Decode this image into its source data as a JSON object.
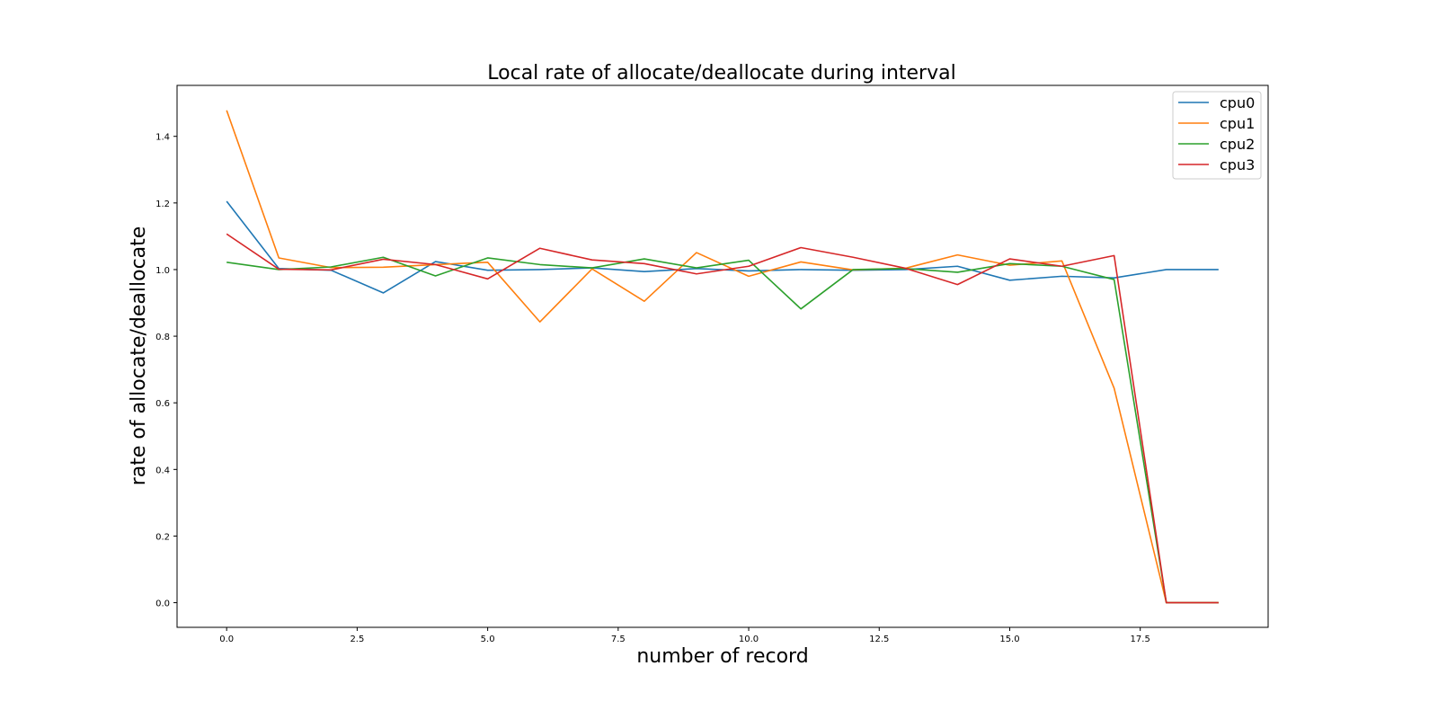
{
  "chart_data": {
    "type": "line",
    "title": "Local rate of allocate/deallocate during interval",
    "xlabel": "number of record",
    "ylabel": "rate of allocate/deallocate",
    "xlim": [
      -0.95,
      19.95
    ],
    "ylim": [
      -0.074,
      1.553
    ],
    "xticks": [
      0.0,
      2.5,
      5.0,
      7.5,
      10.0,
      12.5,
      15.0,
      17.5
    ],
    "yticks": [
      0.0,
      0.2,
      0.4,
      0.6,
      0.8,
      1.0,
      1.2,
      1.4
    ],
    "grid": false,
    "legend_position": "upper right",
    "x": [
      0,
      1,
      2,
      3,
      4,
      5,
      6,
      7,
      8,
      9,
      10,
      11,
      12,
      13,
      14,
      15,
      16,
      17,
      18,
      19
    ],
    "series": [
      {
        "name": "cpu0",
        "color": "#1f77b4",
        "values": [
          1.205,
          1.003,
          0.998,
          0.93,
          1.024,
          0.998,
          1.0,
          1.005,
          0.994,
          1.003,
          0.996,
          1.0,
          0.998,
          1.0,
          1.01,
          0.968,
          0.98,
          0.975,
          1.0,
          1.0
        ]
      },
      {
        "name": "cpu1",
        "color": "#ff7f0e",
        "values": [
          1.478,
          1.035,
          1.006,
          1.007,
          1.015,
          1.022,
          0.843,
          1.002,
          0.905,
          1.051,
          0.98,
          1.023,
          0.999,
          1.004,
          1.044,
          1.013,
          1.026,
          0.644,
          0.0,
          0.0
        ]
      },
      {
        "name": "cpu2",
        "color": "#2ca02c",
        "values": [
          1.022,
          1.0,
          1.008,
          1.037,
          0.981,
          1.035,
          1.015,
          1.005,
          1.032,
          1.005,
          1.028,
          0.882,
          1.0,
          1.003,
          0.992,
          1.018,
          1.01,
          0.97,
          0.0,
          0.0
        ]
      },
      {
        "name": "cpu3",
        "color": "#d62728",
        "values": [
          1.107,
          1.001,
          0.999,
          1.031,
          1.015,
          0.972,
          1.064,
          1.029,
          1.018,
          0.987,
          1.01,
          1.066,
          1.037,
          1.004,
          0.955,
          1.032,
          1.01,
          1.042,
          0.0,
          0.0
        ]
      }
    ]
  }
}
